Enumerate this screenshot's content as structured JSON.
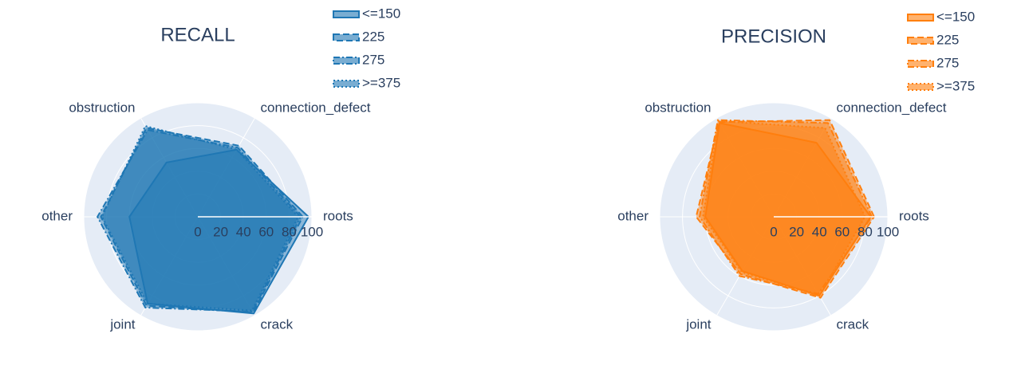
{
  "chart_data": [
    {
      "type": "radar",
      "title": "RECALL",
      "categories": [
        "roots",
        "connection_defect",
        "obstruction",
        "other",
        "joint",
        "crack"
      ],
      "rlim": [
        0,
        100
      ],
      "rticks": [
        0,
        20,
        40,
        60,
        80,
        100
      ],
      "series": [
        {
          "name": "<=150",
          "color": "#1f77b4",
          "dash": "solid",
          "values": [
            97,
            68,
            55,
            60,
            88,
            98
          ]
        },
        {
          "name": "225",
          "color": "#1f77b4",
          "dash": "dash",
          "values": [
            92,
            72,
            90,
            85,
            90,
            97
          ]
        },
        {
          "name": "275",
          "color": "#1f77b4",
          "dash": "dashdot",
          "values": [
            90,
            70,
            88,
            88,
            92,
            96
          ]
        },
        {
          "name": ">=375",
          "color": "#1f77b4",
          "dash": "dot",
          "values": [
            88,
            68,
            92,
            84,
            88,
            95
          ]
        }
      ]
    },
    {
      "type": "radar",
      "title": "PRECISION",
      "categories": [
        "roots",
        "connection_defect",
        "obstruction",
        "other",
        "joint",
        "crack"
      ],
      "rlim": [
        0,
        100
      ],
      "rticks": [
        0,
        20,
        40,
        60,
        80,
        100
      ],
      "series": [
        {
          "name": "<=150",
          "color": "#ff7f0e",
          "dash": "solid",
          "values": [
            85,
            75,
            95,
            60,
            55,
            80
          ]
        },
        {
          "name": "225",
          "color": "#ff7f0e",
          "dash": "dash",
          "values": [
            88,
            98,
            96,
            68,
            58,
            82
          ]
        },
        {
          "name": "275",
          "color": "#ff7f0e",
          "dash": "dashdot",
          "values": [
            86,
            95,
            98,
            65,
            60,
            78
          ]
        },
        {
          "name": ">=375",
          "color": "#ff7f0e",
          "dash": "dot",
          "values": [
            80,
            90,
            97,
            62,
            56,
            80
          ]
        }
      ]
    }
  ]
}
